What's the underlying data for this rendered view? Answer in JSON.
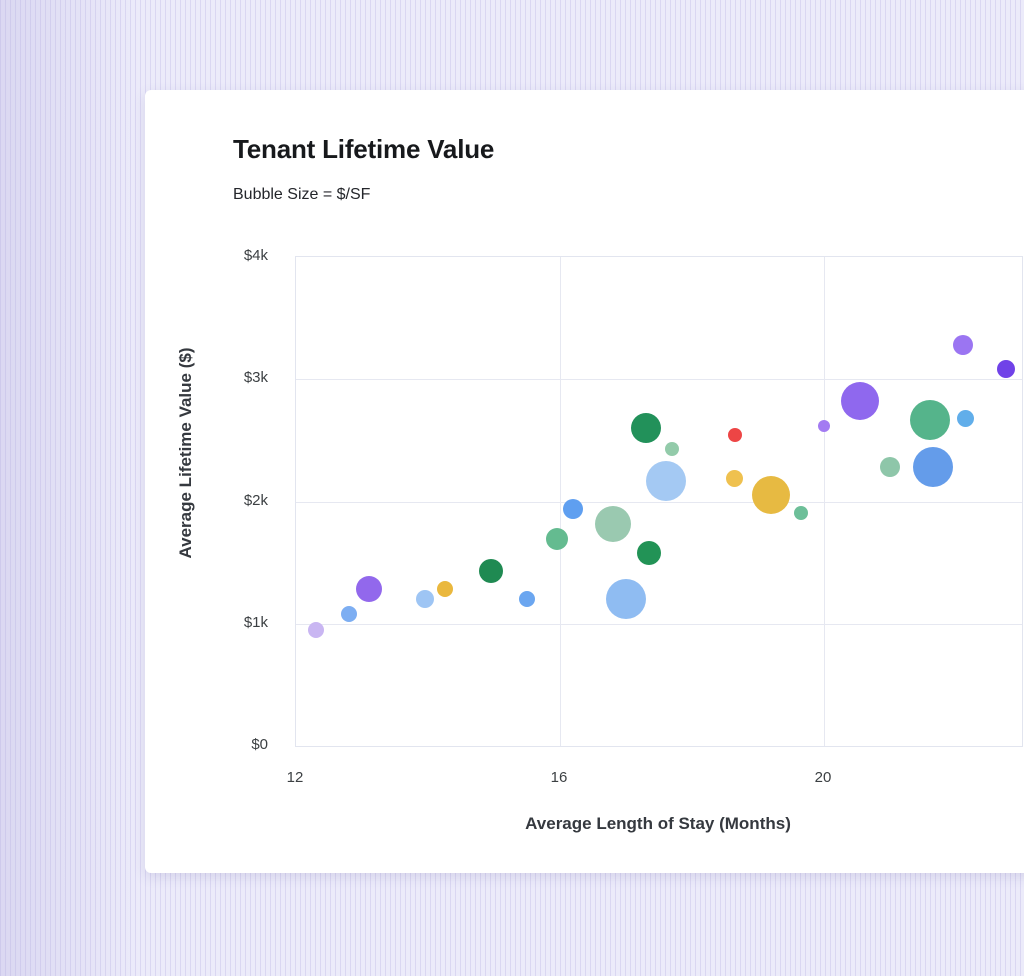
{
  "chart": {
    "title": "Tenant Lifetime Value",
    "subtitle": "Bubble Size = $/SF",
    "x_axis": {
      "title": "Average Length of Stay (Months)",
      "ticks": [
        {
          "value": 12,
          "label": "12"
        },
        {
          "value": 16,
          "label": "16"
        },
        {
          "value": 20,
          "label": "20"
        }
      ]
    },
    "y_axis": {
      "title": "Average Lifetime Value ($)",
      "ticks": [
        {
          "value": 4000,
          "label": "$4k"
        },
        {
          "value": 3000,
          "label": "$3k"
        },
        {
          "value": 2000,
          "label": "$2k"
        },
        {
          "value": 1000,
          "label": "$1k"
        },
        {
          "value": 0,
          "label": "$0"
        }
      ]
    }
  },
  "chart_data": {
    "type": "scatter",
    "subtype": "bubble",
    "title": "Tenant Lifetime Value",
    "subtitle": "Bubble Size = $/SF",
    "xlabel": "Average Length of Stay (Months)",
    "ylabel": "Average Lifetime Value ($)",
    "xlim": [
      12,
      23
    ],
    "ylim": [
      0,
      4000
    ],
    "x_ticks": [
      12,
      16,
      20
    ],
    "y_ticks": [
      0,
      1000,
      2000,
      3000,
      4000
    ],
    "grid": true,
    "size_encoding": "bubble radius (px) represents $/SF",
    "points": [
      {
        "x": 12.3,
        "y": 950,
        "r": 8,
        "color": "#c9b6f2"
      },
      {
        "x": 12.8,
        "y": 1080,
        "r": 8,
        "color": "#7daef2"
      },
      {
        "x": 13.1,
        "y": 1285,
        "r": 13,
        "color": "#9268ec"
      },
      {
        "x": 13.95,
        "y": 1205,
        "r": 9,
        "color": "#9ec5f4"
      },
      {
        "x": 14.25,
        "y": 1285,
        "r": 8,
        "color": "#eab83e"
      },
      {
        "x": 14.95,
        "y": 1435,
        "r": 12,
        "color": "#1f8a52"
      },
      {
        "x": 15.5,
        "y": 1200,
        "r": 8,
        "color": "#6ba6f0"
      },
      {
        "x": 15.95,
        "y": 1695,
        "r": 11,
        "color": "#64bb90"
      },
      {
        "x": 16.2,
        "y": 1940,
        "r": 10,
        "color": "#5f9ff0"
      },
      {
        "x": 16.8,
        "y": 1820,
        "r": 18,
        "color": "#9ac9b0"
      },
      {
        "x": 17.0,
        "y": 1205,
        "r": 20,
        "color": "#8fbcf2"
      },
      {
        "x": 17.3,
        "y": 2600,
        "r": 15,
        "color": "#22915a"
      },
      {
        "x": 17.35,
        "y": 1575,
        "r": 12,
        "color": "#229356"
      },
      {
        "x": 17.6,
        "y": 2170,
        "r": 20,
        "color": "#a4c9f3"
      },
      {
        "x": 17.7,
        "y": 2430,
        "r": 7,
        "color": "#93cbaa"
      },
      {
        "x": 18.65,
        "y": 2545,
        "r": 7,
        "color": "#ed4545"
      },
      {
        "x": 18.65,
        "y": 2185,
        "r": 8.5,
        "color": "#efc14f"
      },
      {
        "x": 19.2,
        "y": 2055,
        "r": 19,
        "color": "#e7ba42"
      },
      {
        "x": 19.65,
        "y": 1910,
        "r": 7,
        "color": "#6dbf99"
      },
      {
        "x": 20.0,
        "y": 2620,
        "r": 6,
        "color": "#a37bf2"
      },
      {
        "x": 20.55,
        "y": 2825,
        "r": 19,
        "color": "#8f68ee"
      },
      {
        "x": 21.0,
        "y": 2285,
        "r": 10,
        "color": "#8ec6a9"
      },
      {
        "x": 21.6,
        "y": 2670,
        "r": 20,
        "color": "#55b48b"
      },
      {
        "x": 21.65,
        "y": 2285,
        "r": 20,
        "color": "#649cea"
      },
      {
        "x": 22.1,
        "y": 3280,
        "r": 10,
        "color": "#9b75f2"
      },
      {
        "x": 22.15,
        "y": 2675,
        "r": 8.5,
        "color": "#61aeea"
      },
      {
        "x": 22.75,
        "y": 3085,
        "r": 9,
        "color": "#7042e8"
      }
    ]
  }
}
